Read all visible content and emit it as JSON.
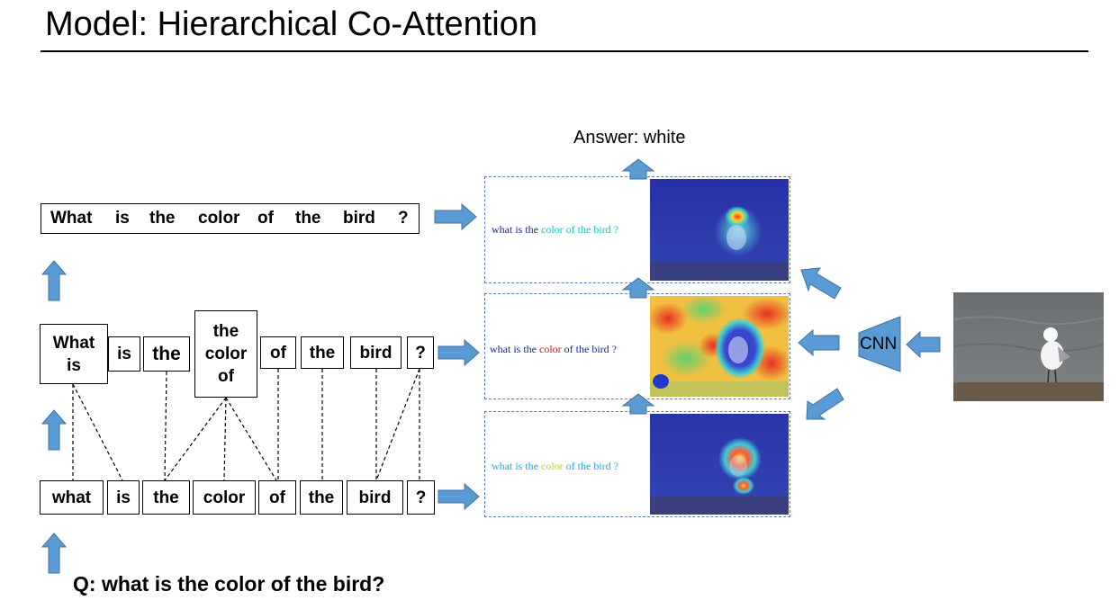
{
  "slide": {
    "title": "Model: Hierarchical Co-Attention"
  },
  "answer": "Answer: white",
  "question": "Q: what is the color of the bird?",
  "cnn_label": "CNN",
  "phrase_level": {
    "words": [
      "What",
      "is",
      "the",
      "color",
      "of",
      "the",
      "bird",
      "?"
    ]
  },
  "mid_level": {
    "tokens": [
      {
        "lines": [
          "What",
          "is"
        ]
      },
      {
        "lines": [
          "is"
        ]
      },
      {
        "lines": [
          "the"
        ]
      },
      {
        "lines": [
          "the",
          "color",
          "of"
        ]
      },
      {
        "lines": [
          "of"
        ]
      },
      {
        "lines": [
          "the"
        ]
      },
      {
        "lines": [
          "bird"
        ]
      },
      {
        "lines": [
          "?"
        ]
      }
    ]
  },
  "word_level": {
    "words": [
      "what",
      "is",
      "the",
      "color",
      "of",
      "the",
      "bird",
      "?"
    ]
  },
  "attention_rows": [
    {
      "name": "top",
      "segments": [
        {
          "text": "what is the ",
          "color": "#1a2a8c"
        },
        {
          "text": "color of the bird ?",
          "color": "#17c5b8"
        }
      ]
    },
    {
      "name": "middle",
      "segments": [
        {
          "text": "what is the ",
          "color": "#1a2a8c"
        },
        {
          "text": "color",
          "color": "#c8181c"
        },
        {
          "text": " of the bird ?",
          "color": "#1a2a8c"
        }
      ]
    },
    {
      "name": "bottom",
      "segments": [
        {
          "text": "what is the ",
          "color": "#28a8dc"
        },
        {
          "text": "color",
          "color": "#b8d43a"
        },
        {
          "text": " of the bird ?",
          "color": "#28a8dc"
        }
      ]
    }
  ],
  "colors": {
    "arrow_fill": "#5b9bd5",
    "arrow_stroke": "#41719c",
    "dash_border": "#5b7fb5"
  }
}
